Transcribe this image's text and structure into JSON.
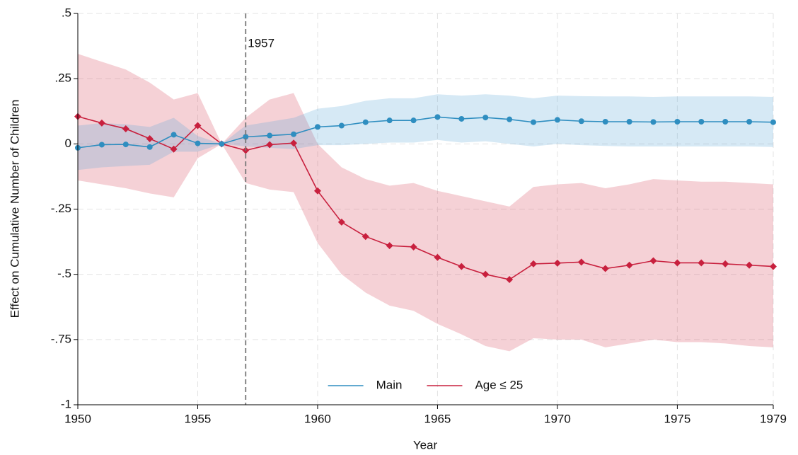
{
  "chart_data": {
    "type": "line",
    "x_label": "Year",
    "y_label": "Effect on Cumulative Number of Children",
    "x": [
      1950,
      1951,
      1952,
      1953,
      1954,
      1955,
      1956,
      1957,
      1958,
      1959,
      1960,
      1961,
      1962,
      1963,
      1964,
      1965,
      1966,
      1967,
      1968,
      1969,
      1970,
      1971,
      1972,
      1973,
      1974,
      1975,
      1976,
      1977,
      1978,
      1979
    ],
    "xlim": [
      1950,
      1979
    ],
    "xticks": [
      1950,
      1955,
      1960,
      1965,
      1970,
      1975,
      1979
    ],
    "ylim": [
      -1,
      0.5
    ],
    "yticks": [
      {
        "value": -1,
        "label": "-1"
      },
      {
        "value": -0.75,
        "label": "-.75"
      },
      {
        "value": -0.5,
        "label": "-.5"
      },
      {
        "value": -0.25,
        "label": "-.25"
      },
      0,
      {
        "value": 0.25,
        "label": ".25"
      },
      {
        "value": 0.5,
        "label": ".5"
      }
    ],
    "grid": true,
    "legend_position": "bottom-center",
    "annotations": [
      {
        "x": 1957
      }
    ],
    "series": [
      {
        "name": "Age ≤ 25",
        "color": "#c8203e",
        "band_color": "#d9485a",
        "marker": "diamond",
        "values": [
          0.105,
          0.08,
          0.058,
          0.02,
          -0.02,
          0.07,
          0,
          -0.025,
          -0.003,
          0.003,
          -0.18,
          -0.3,
          -0.355,
          -0.39,
          -0.395,
          -0.435,
          -0.47,
          -0.5,
          -0.52,
          -0.46,
          -0.457,
          -0.453,
          -0.478,
          -0.465,
          -0.448,
          -0.456,
          -0.456,
          -0.46,
          -0.465,
          -0.47
        ],
        "upper": [
          0.345,
          0.315,
          0.285,
          0.235,
          0.17,
          0.195,
          0,
          0.1,
          0.17,
          0.195,
          0.0,
          -0.09,
          -0.135,
          -0.16,
          -0.15,
          -0.18,
          -0.2,
          -0.22,
          -0.24,
          -0.165,
          -0.155,
          -0.15,
          -0.17,
          -0.155,
          -0.135,
          -0.14,
          -0.145,
          -0.145,
          -0.15,
          -0.155
        ],
        "lower": [
          -0.14,
          -0.155,
          -0.17,
          -0.19,
          -0.205,
          -0.055,
          0,
          -0.15,
          -0.175,
          -0.185,
          -0.38,
          -0.5,
          -0.57,
          -0.62,
          -0.64,
          -0.69,
          -0.73,
          -0.775,
          -0.795,
          -0.745,
          -0.75,
          -0.75,
          -0.78,
          -0.765,
          -0.75,
          -0.76,
          -0.76,
          -0.765,
          -0.775,
          -0.78
        ]
      },
      {
        "name": "Main",
        "color": "#2f8ec0",
        "band_color": "#5aa8d8",
        "marker": "circle",
        "values": [
          -0.015,
          -0.003,
          -0.002,
          -0.012,
          0.035,
          0.002,
          0,
          0.027,
          0.032,
          0.037,
          0.065,
          0.07,
          0.083,
          0.09,
          0.09,
          0.103,
          0.096,
          0.101,
          0.094,
          0.083,
          0.092,
          0.087,
          0.085,
          0.085,
          0.084,
          0.085,
          0.085,
          0.085,
          0.085,
          0.083
        ],
        "upper": [
          0.07,
          0.08,
          0.075,
          0.065,
          0.1,
          0.03,
          0,
          0.07,
          0.085,
          0.1,
          0.135,
          0.145,
          0.165,
          0.175,
          0.175,
          0.19,
          0.185,
          0.19,
          0.185,
          0.175,
          0.185,
          0.183,
          0.182,
          0.182,
          0.18,
          0.182,
          0.182,
          0.182,
          0.182,
          0.18
        ],
        "lower": [
          -0.1,
          -0.09,
          -0.085,
          -0.08,
          -0.03,
          -0.03,
          0,
          -0.01,
          -0.015,
          -0.02,
          -0.005,
          -0.005,
          0.0,
          0.005,
          0.005,
          0.015,
          0.005,
          0.01,
          0.0,
          -0.01,
          0.0,
          -0.005,
          -0.008,
          -0.01,
          -0.01,
          -0.01,
          -0.01,
          -0.01,
          -0.01,
          -0.012
        ]
      }
    ]
  }
}
